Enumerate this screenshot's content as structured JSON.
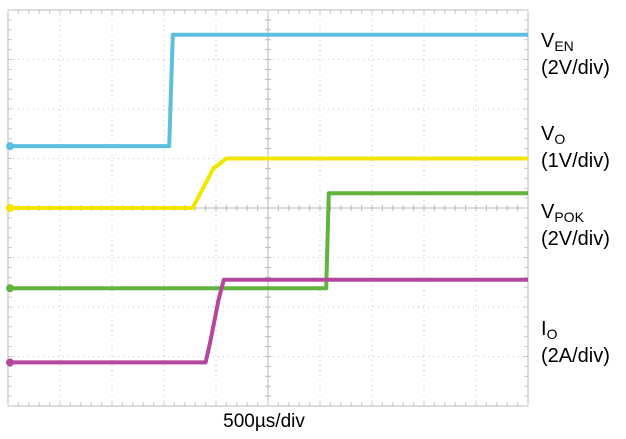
{
  "chart_data": {
    "type": "line",
    "xlabel": "500µs/div",
    "x_units": "div",
    "y_units": "div",
    "xlim": [
      0,
      10
    ],
    "ylim": [
      0,
      8
    ],
    "grid": true,
    "series": [
      {
        "label_main": "V",
        "label_sub": "EN",
        "scale": "(2V/div)",
        "color": "#5bc0de",
        "marker": "2",
        "points": [
          [
            0,
            5.25
          ],
          [
            3.1,
            5.25
          ],
          [
            3.17,
            7.5
          ],
          [
            10,
            7.5
          ]
        ]
      },
      {
        "label_main": "V",
        "label_sub": "O",
        "scale": "(1V/div)",
        "color": "#f2e600",
        "marker": "1",
        "points": [
          [
            0,
            4.0
          ],
          [
            3.55,
            4.0
          ],
          [
            3.75,
            4.4
          ],
          [
            3.95,
            4.8
          ],
          [
            4.2,
            5.0
          ],
          [
            10,
            5.0
          ]
        ]
      },
      {
        "label_main": "V",
        "label_sub": "POK",
        "scale": "(2V/div)",
        "color": "#5fb43e",
        "marker": "4",
        "points": [
          [
            0,
            2.38
          ],
          [
            6.12,
            2.38
          ],
          [
            6.17,
            4.3
          ],
          [
            10,
            4.3
          ]
        ]
      },
      {
        "label_main": "I",
        "label_sub": "O",
        "scale": "(2A/div)",
        "color": "#b5469e",
        "marker": "3",
        "points": [
          [
            0,
            0.88
          ],
          [
            3.8,
            0.88
          ],
          [
            3.88,
            1.25
          ],
          [
            4.05,
            2.15
          ],
          [
            4.15,
            2.55
          ],
          [
            10,
            2.55
          ]
        ]
      }
    ]
  }
}
